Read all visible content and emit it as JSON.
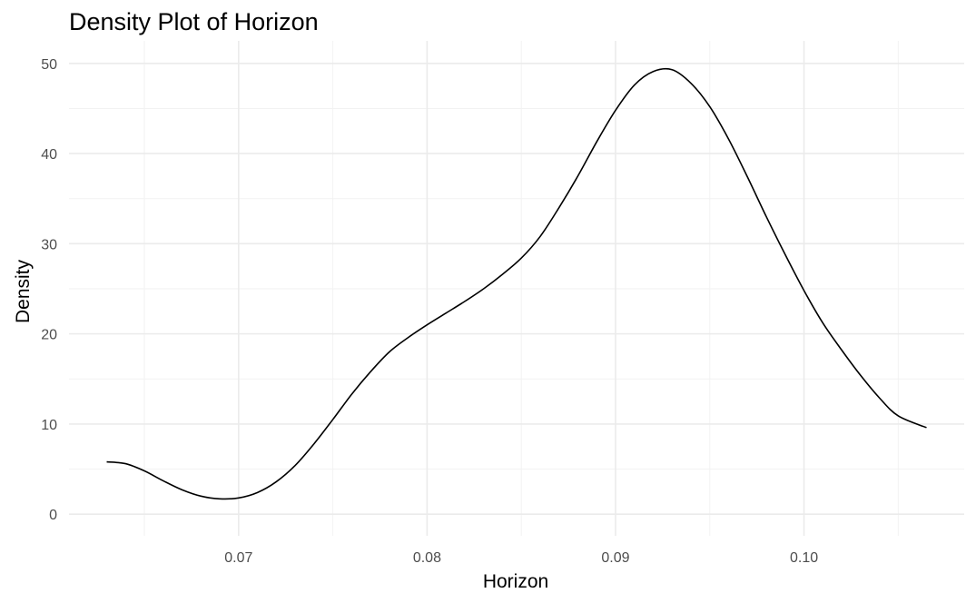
{
  "chart_data": {
    "type": "line",
    "title": "Density Plot of Horizon",
    "xlabel": "Horizon",
    "ylabel": "Density",
    "xlim": [
      0.061,
      0.1085
    ],
    "ylim": [
      -2.4,
      52.5
    ],
    "x_ticks": [
      0.07,
      0.08,
      0.09,
      0.1
    ],
    "x_tick_labels": [
      "0.07",
      "0.08",
      "0.09",
      "0.10"
    ],
    "x_minor_ticks": [
      0.065,
      0.075,
      0.085,
      0.095,
      0.105
    ],
    "y_ticks": [
      0,
      10,
      20,
      30,
      40,
      50
    ],
    "y_tick_labels": [
      "0",
      "10",
      "20",
      "30",
      "40",
      "50"
    ],
    "y_minor_ticks": [
      5,
      15,
      25,
      35,
      45
    ],
    "grid": true,
    "legend": "none",
    "line_color": "#000000",
    "series": [
      {
        "x": [
          0.063,
          0.064,
          0.065,
          0.066,
          0.067,
          0.068,
          0.069,
          0.07,
          0.071,
          0.072,
          0.073,
          0.074,
          0.075,
          0.076,
          0.077,
          0.078,
          0.079,
          0.08,
          0.081,
          0.082,
          0.083,
          0.084,
          0.085,
          0.086,
          0.087,
          0.088,
          0.089,
          0.09,
          0.091,
          0.092,
          0.093,
          0.094,
          0.095,
          0.096,
          0.097,
          0.098,
          0.099,
          0.1,
          0.101,
          0.102,
          0.103,
          0.104,
          0.105,
          0.1065
        ],
        "y": [
          5.8,
          5.6,
          4.8,
          3.7,
          2.7,
          2.0,
          1.7,
          1.8,
          2.4,
          3.6,
          5.4,
          7.8,
          10.5,
          13.3,
          15.8,
          18.0,
          19.6,
          21.0,
          22.3,
          23.6,
          25.0,
          26.6,
          28.4,
          30.8,
          34.0,
          37.5,
          41.3,
          44.8,
          47.6,
          49.1,
          49.3,
          47.8,
          45.2,
          41.6,
          37.4,
          33.0,
          28.8,
          24.8,
          21.2,
          18.2,
          15.4,
          12.9,
          10.9,
          9.6
        ]
      }
    ]
  }
}
